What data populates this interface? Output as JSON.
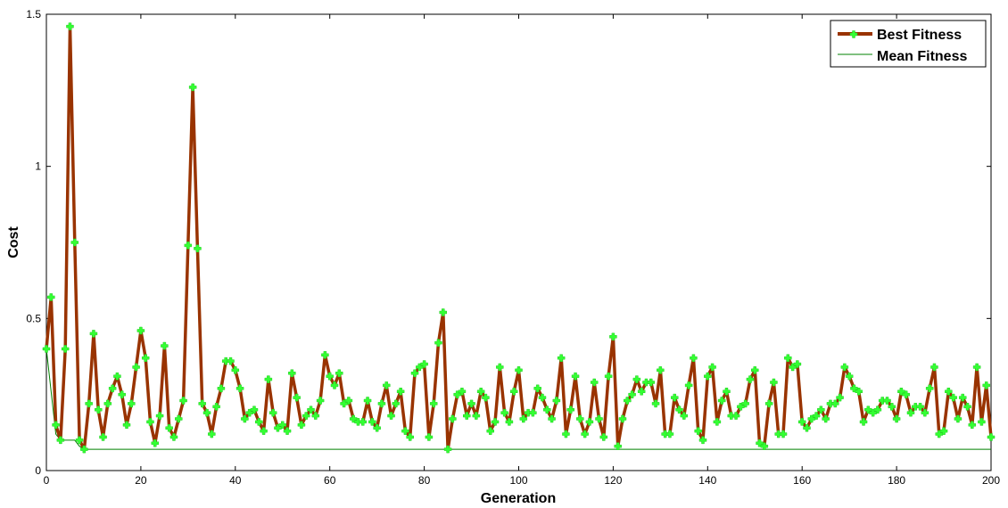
{
  "chart_data": {
    "type": "line",
    "title": "",
    "xlabel": "Generation",
    "ylabel": "Cost",
    "xlim": [
      0,
      200
    ],
    "ylim": [
      0,
      1.5
    ],
    "xticks": [
      0,
      20,
      40,
      60,
      80,
      100,
      120,
      140,
      160,
      180,
      200
    ],
    "yticks": [
      0,
      0.5,
      1,
      1.5
    ],
    "ytick_labels": [
      "0",
      "0.5",
      "1",
      "1.5"
    ],
    "grid": false,
    "legend_position": "top-right",
    "series": [
      {
        "name": "Best Fitness",
        "color": "#993300",
        "marker_color": "#33ff33",
        "marker": "star",
        "x": [
          0,
          1,
          2,
          3,
          4,
          5,
          6,
          7,
          8,
          9,
          10,
          11,
          12,
          13,
          14,
          15,
          16,
          17,
          18,
          19,
          20,
          21,
          22,
          23,
          24,
          25,
          26,
          27,
          28,
          29,
          30,
          31,
          32,
          33,
          34,
          35,
          36,
          37,
          38,
          39,
          40,
          41,
          42,
          43,
          44,
          45,
          46,
          47,
          48,
          49,
          50,
          51,
          52,
          53,
          54,
          55,
          56,
          57,
          58,
          59,
          60,
          61,
          62,
          63,
          64,
          65,
          66,
          67,
          68,
          69,
          70,
          71,
          72,
          73,
          74,
          75,
          76,
          77,
          78,
          79,
          80,
          81,
          82,
          83,
          84,
          85,
          86,
          87,
          88,
          89,
          90,
          91,
          92,
          93,
          94,
          95,
          96,
          97,
          98,
          99,
          100,
          101,
          102,
          103,
          104,
          105,
          106,
          107,
          108,
          109,
          110,
          111,
          112,
          113,
          114,
          115,
          116,
          117,
          118,
          119,
          120,
          121,
          122,
          123,
          124,
          125,
          126,
          127,
          128,
          129,
          130,
          131,
          132,
          133,
          134,
          135,
          136,
          137,
          138,
          139,
          140,
          141,
          142,
          143,
          144,
          145,
          146,
          147,
          148,
          149,
          150,
          151,
          152,
          153,
          154,
          155,
          156,
          157,
          158,
          159,
          160,
          161,
          162,
          163,
          164,
          165,
          166,
          167,
          168,
          169,
          170,
          171,
          172,
          173,
          174,
          175,
          176,
          177,
          178,
          179,
          180,
          181,
          182,
          183,
          184,
          185,
          186,
          187,
          188,
          189,
          190,
          191,
          192,
          193,
          194,
          195,
          196,
          197,
          198,
          199,
          200
        ],
        "values": [
          0.4,
          0.57,
          0.15,
          0.1,
          0.4,
          1.46,
          0.75,
          0.1,
          0.07,
          0.22,
          0.45,
          0.2,
          0.11,
          0.22,
          0.27,
          0.31,
          0.25,
          0.15,
          0.22,
          0.34,
          0.46,
          0.37,
          0.16,
          0.09,
          0.18,
          0.41,
          0.14,
          0.11,
          0.17,
          0.23,
          0.74,
          1.26,
          0.73,
          0.22,
          0.19,
          0.12,
          0.21,
          0.27,
          0.36,
          0.36,
          0.33,
          0.27,
          0.17,
          0.19,
          0.2,
          0.16,
          0.13,
          0.3,
          0.19,
          0.14,
          0.15,
          0.13,
          0.32,
          0.24,
          0.15,
          0.18,
          0.2,
          0.18,
          0.23,
          0.38,
          0.31,
          0.28,
          0.32,
          0.22,
          0.23,
          0.17,
          0.16,
          0.16,
          0.23,
          0.16,
          0.14,
          0.22,
          0.28,
          0.18,
          0.22,
          0.26,
          0.13,
          0.11,
          0.32,
          0.34,
          0.35,
          0.11,
          0.22,
          0.42,
          0.52,
          0.07,
          0.17,
          0.25,
          0.26,
          0.18,
          0.22,
          0.18,
          0.26,
          0.24,
          0.13,
          0.16,
          0.34,
          0.19,
          0.16,
          0.26,
          0.33,
          0.17,
          0.19,
          0.19,
          0.27,
          0.24,
          0.2,
          0.17,
          0.23,
          0.37,
          0.12,
          0.2,
          0.31,
          0.17,
          0.12,
          0.16,
          0.29,
          0.17,
          0.11,
          0.31,
          0.44,
          0.08,
          0.17,
          0.23,
          0.25,
          0.3,
          0.26,
          0.29,
          0.29,
          0.22,
          0.33,
          0.12,
          0.12,
          0.24,
          0.2,
          0.18,
          0.28,
          0.37,
          0.13,
          0.1,
          0.31,
          0.34,
          0.16,
          0.23,
          0.26,
          0.18,
          0.18,
          0.21,
          0.22,
          0.3,
          0.33,
          0.09,
          0.08,
          0.22,
          0.29,
          0.12,
          0.12,
          0.37,
          0.34,
          0.35,
          0.16,
          0.14,
          0.17,
          0.18,
          0.2,
          0.17,
          0.22,
          0.22,
          0.24,
          0.34,
          0.31,
          0.27,
          0.26,
          0.16,
          0.2,
          0.19,
          0.2,
          0.23,
          0.23,
          0.21,
          0.17,
          0.26,
          0.25,
          0.19,
          0.21,
          0.21,
          0.19,
          0.27,
          0.34,
          0.12,
          0.13,
          0.26,
          0.24,
          0.17,
          0.24,
          0.21,
          0.15,
          0.34,
          0.16,
          0.28,
          0.11
        ]
      },
      {
        "name": "Mean Fitness",
        "color": "#008000",
        "x": [
          0,
          2,
          3,
          6,
          7,
          8,
          200
        ],
        "values": [
          0.4,
          0.12,
          0.1,
          0.1,
          0.08,
          0.07,
          0.07
        ]
      }
    ]
  }
}
